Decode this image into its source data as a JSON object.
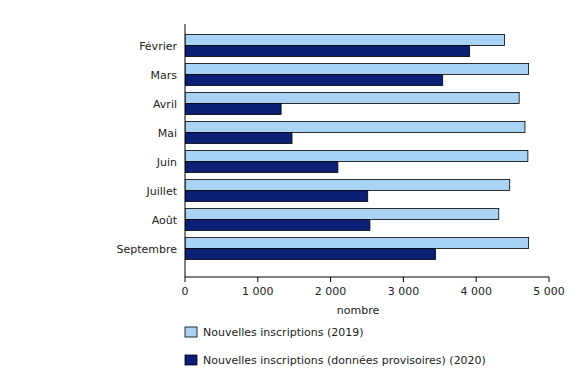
{
  "chart_data": {
    "type": "bar",
    "orientation": "horizontal",
    "categories": [
      "Février",
      "Mars",
      "Avril",
      "Mai",
      "Juin",
      "Juillet",
      "Août",
      "Septembre"
    ],
    "series": [
      {
        "name": "Nouvelles inscriptions (2019)",
        "color": "#a9d3f5",
        "values": [
          4390,
          4720,
          4590,
          4670,
          4710,
          4460,
          4310,
          4720
        ]
      },
      {
        "name": "Nouvelles inscriptions (données provisoires) (2020)",
        "color": "#0b1f75",
        "values": [
          3910,
          3540,
          1320,
          1470,
          2100,
          2510,
          2540,
          3440
        ]
      }
    ],
    "x_label": "nombre",
    "xlim": [
      0,
      5000
    ],
    "xticks": [
      0,
      {
        "value": 1000,
        "label": "1 000"
      },
      {
        "value": 2000,
        "label": "2 000"
      },
      {
        "value": 3000,
        "label": "3 000"
      },
      {
        "value": 4000,
        "label": "4 000"
      },
      {
        "value": 5000,
        "label": "5 000"
      }
    ],
    "grid": false,
    "legend": "bottom"
  }
}
